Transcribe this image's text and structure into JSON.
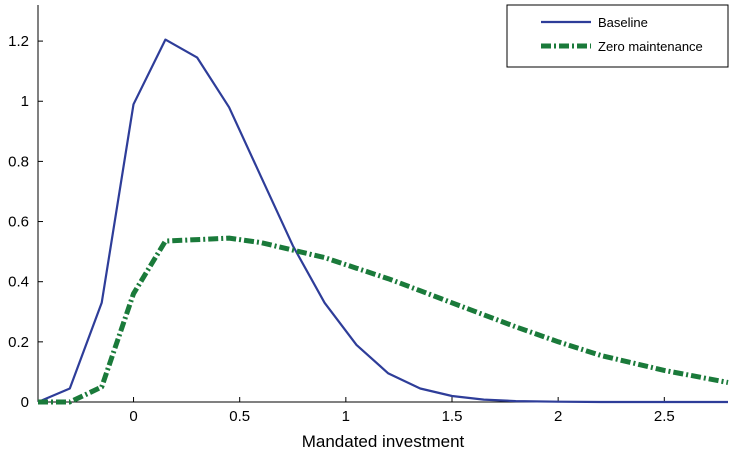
{
  "chart_data": {
    "type": "line",
    "title": "",
    "xlabel": "Mandated investment",
    "ylabel": "",
    "xlim": [
      -0.45,
      2.8
    ],
    "ylim": [
      0,
      1.32
    ],
    "xticks": [
      0,
      0.5,
      1,
      1.5,
      2,
      2.5
    ],
    "xtick_labels": [
      "0",
      "0.5",
      "1",
      "1.5",
      "2",
      "2.5"
    ],
    "yticks": [
      0,
      0.2,
      0.4,
      0.6,
      0.8,
      1,
      1.2
    ],
    "ytick_labels": [
      "0",
      "0.2",
      "0.4",
      "0.6",
      "0.8",
      "1",
      "1.2"
    ],
    "grid": false,
    "legend_position": "top-right",
    "series": [
      {
        "name": "Baseline",
        "color": "#2e3d99",
        "style": "solid",
        "x": [
          -0.45,
          -0.3,
          -0.15,
          0.0,
          0.15,
          0.3,
          0.45,
          0.6,
          0.75,
          0.9,
          1.05,
          1.2,
          1.35,
          1.5,
          1.65,
          1.8,
          2.0,
          2.2,
          2.5,
          2.8
        ],
        "y": [
          0.0,
          0.045,
          0.33,
          0.99,
          1.205,
          1.145,
          0.98,
          0.75,
          0.52,
          0.33,
          0.19,
          0.095,
          0.045,
          0.02,
          0.008,
          0.003,
          0.001,
          0.0,
          0.0,
          0.0
        ]
      },
      {
        "name": "Zero maintenance",
        "color": "#1a7a3a",
        "style": "dash-dot",
        "x": [
          -0.45,
          -0.3,
          -0.15,
          0.0,
          0.15,
          0.3,
          0.45,
          0.6,
          0.75,
          0.9,
          1.05,
          1.2,
          1.35,
          1.5,
          1.65,
          1.8,
          2.0,
          2.2,
          2.5,
          2.8
        ],
        "y": [
          0.0,
          0.0,
          0.05,
          0.36,
          0.535,
          0.54,
          0.545,
          0.53,
          0.505,
          0.48,
          0.445,
          0.41,
          0.37,
          0.33,
          0.29,
          0.25,
          0.2,
          0.155,
          0.105,
          0.065
        ]
      }
    ]
  }
}
